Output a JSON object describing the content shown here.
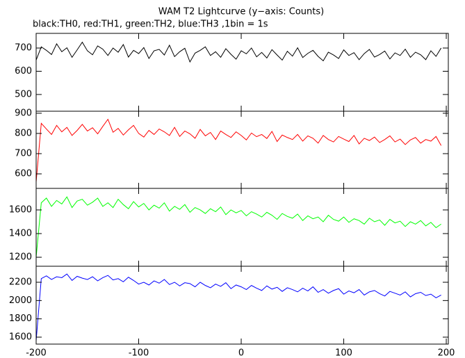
{
  "chart_data": [
    {
      "type": "line",
      "title": "WAM T2 Lightcurve (y−axis: Counts)",
      "subtitle": "black:TH0, red:TH1, green:TH2, blue:TH3 ,1bin = 1s",
      "xlim": [
        -200,
        202
      ],
      "ylim": [
        428,
        763
      ],
      "yticks": [
        500,
        600,
        700
      ],
      "x": [
        -200,
        -195,
        -190,
        -185,
        -180,
        -175,
        -170,
        -165,
        -160,
        -155,
        -150,
        -145,
        -140,
        -135,
        -130,
        -125,
        -120,
        -115,
        -110,
        -105,
        -100,
        -95,
        -90,
        -85,
        -80,
        -75,
        -70,
        -65,
        -60,
        -55,
        -50,
        -45,
        -40,
        -35,
        -30,
        -25,
        -20,
        -15,
        -10,
        -5,
        0,
        5,
        10,
        15,
        20,
        25,
        30,
        35,
        40,
        45,
        50,
        55,
        60,
        65,
        70,
        75,
        80,
        85,
        90,
        95,
        100,
        105,
        110,
        115,
        120,
        125,
        130,
        135,
        140,
        145,
        150,
        155,
        160,
        165,
        170,
        175,
        180,
        185,
        190,
        195
      ],
      "series": [
        {
          "color": "#000000",
          "values": [
            648,
            705,
            690,
            672,
            718,
            684,
            701,
            660,
            692,
            725,
            688,
            671,
            709,
            695,
            668,
            700,
            682,
            715,
            661,
            690,
            676,
            702,
            655,
            688,
            694,
            670,
            712,
            663,
            684,
            699,
            640,
            678,
            690,
            705,
            668,
            684,
            660,
            697,
            673,
            652,
            688,
            675,
            700,
            662,
            681,
            657,
            693,
            670,
            648,
            686,
            665,
            701,
            659,
            677,
            690,
            664,
            645,
            682,
            670,
            655,
            692,
            668,
            680,
            650,
            676,
            694,
            661,
            672,
            687,
            653,
            679,
            668,
            695,
            660,
            682,
            671,
            650,
            688,
            664,
            700
          ]
        }
      ]
    },
    {
      "type": "line",
      "xlim": [
        -200,
        202
      ],
      "ylim": [
        528,
        910
      ],
      "yticks": [
        600,
        700,
        800,
        900
      ],
      "x": [
        -200,
        -195,
        -190,
        -185,
        -180,
        -175,
        -170,
        -165,
        -160,
        -155,
        -150,
        -145,
        -140,
        -135,
        -130,
        -125,
        -120,
        -115,
        -110,
        -105,
        -100,
        -95,
        -90,
        -85,
        -80,
        -75,
        -70,
        -65,
        -60,
        -55,
        -50,
        -45,
        -40,
        -35,
        -30,
        -25,
        -20,
        -15,
        -10,
        -5,
        0,
        5,
        10,
        15,
        20,
        25,
        30,
        35,
        40,
        45,
        50,
        55,
        60,
        65,
        70,
        75,
        80,
        85,
        90,
        95,
        100,
        105,
        110,
        115,
        120,
        125,
        130,
        135,
        140,
        145,
        150,
        155,
        160,
        165,
        170,
        175,
        180,
        185,
        190,
        195
      ],
      "series": [
        {
          "color": "#ff0000",
          "values": [
            560,
            850,
            822,
            795,
            840,
            808,
            830,
            790,
            815,
            845,
            812,
            828,
            798,
            835,
            870,
            806,
            825,
            792,
            818,
            840,
            800,
            782,
            815,
            795,
            822,
            808,
            790,
            830,
            785,
            812,
            798,
            776,
            820,
            788,
            805,
            770,
            812,
            795,
            780,
            808,
            790,
            768,
            802,
            784,
            795,
            775,
            810,
            760,
            792,
            780,
            770,
            795,
            762,
            788,
            776,
            752,
            790,
            770,
            758,
            785,
            772,
            760,
            790,
            748,
            776,
            765,
            782,
            755,
            770,
            788,
            758,
            772,
            745,
            768,
            780,
            752,
            770,
            762,
            785,
            740
          ]
        }
      ]
    },
    {
      "type": "line",
      "xlim": [
        -200,
        202
      ],
      "ylim": [
        1124,
        1782
      ],
      "yticks": [
        1200,
        1400,
        1600
      ],
      "x": [
        -200,
        -195,
        -190,
        -185,
        -180,
        -175,
        -170,
        -165,
        -160,
        -155,
        -150,
        -145,
        -140,
        -135,
        -130,
        -125,
        -120,
        -115,
        -110,
        -105,
        -100,
        -95,
        -90,
        -85,
        -80,
        -75,
        -70,
        -65,
        -60,
        -55,
        -50,
        -45,
        -40,
        -35,
        -30,
        -25,
        -20,
        -15,
        -10,
        -5,
        0,
        5,
        10,
        15,
        20,
        25,
        30,
        35,
        40,
        45,
        50,
        55,
        60,
        65,
        70,
        75,
        80,
        85,
        90,
        95,
        100,
        105,
        110,
        115,
        120,
        125,
        130,
        135,
        140,
        145,
        150,
        155,
        160,
        165,
        170,
        175,
        180,
        185,
        190,
        195
      ],
      "series": [
        {
          "color": "#00ff00",
          "values": [
            1200,
            1660,
            1700,
            1630,
            1680,
            1650,
            1710,
            1620,
            1675,
            1690,
            1640,
            1665,
            1700,
            1630,
            1660,
            1620,
            1690,
            1645,
            1610,
            1670,
            1625,
            1655,
            1600,
            1640,
            1615,
            1660,
            1590,
            1630,
            1605,
            1645,
            1580,
            1620,
            1600,
            1570,
            1610,
            1585,
            1625,
            1560,
            1600,
            1575,
            1595,
            1550,
            1585,
            1565,
            1540,
            1580,
            1555,
            1520,
            1570,
            1545,
            1530,
            1565,
            1510,
            1550,
            1525,
            1540,
            1500,
            1555,
            1520,
            1505,
            1540,
            1495,
            1525,
            1510,
            1480,
            1530,
            1500,
            1515,
            1470,
            1520,
            1490,
            1505,
            1460,
            1500,
            1480,
            1510,
            1465,
            1495,
            1450,
            1480
          ]
        }
      ]
    },
    {
      "type": "line",
      "xlim": [
        -200,
        202
      ],
      "ylim": [
        1524,
        2375
      ],
      "yticks": [
        1600,
        1800,
        2000,
        2200
      ],
      "xticks": [
        -200,
        -100,
        0,
        100,
        200
      ],
      "x": [
        -200,
        -195,
        -190,
        -185,
        -180,
        -175,
        -170,
        -165,
        -160,
        -155,
        -150,
        -145,
        -140,
        -135,
        -130,
        -125,
        -120,
        -115,
        -110,
        -105,
        -100,
        -95,
        -90,
        -85,
        -80,
        -75,
        -70,
        -65,
        -60,
        -55,
        -50,
        -45,
        -40,
        -35,
        -30,
        -25,
        -20,
        -15,
        -10,
        -5,
        0,
        5,
        10,
        15,
        20,
        25,
        30,
        35,
        40,
        45,
        50,
        55,
        60,
        65,
        70,
        75,
        80,
        85,
        90,
        95,
        100,
        105,
        110,
        115,
        120,
        125,
        130,
        135,
        140,
        145,
        150,
        155,
        160,
        165,
        170,
        175,
        180,
        185,
        190,
        195
      ],
      "series": [
        {
          "color": "#0000ff",
          "values": [
            1560,
            2240,
            2270,
            2230,
            2260,
            2250,
            2290,
            2220,
            2265,
            2245,
            2230,
            2260,
            2215,
            2250,
            2275,
            2225,
            2240,
            2205,
            2255,
            2220,
            2180,
            2200,
            2170,
            2215,
            2190,
            2230,
            2175,
            2200,
            2160,
            2195,
            2185,
            2150,
            2200,
            2165,
            2140,
            2180,
            2155,
            2195,
            2130,
            2170,
            2150,
            2120,
            2165,
            2135,
            2110,
            2160,
            2125,
            2145,
            2100,
            2140,
            2120,
            2095,
            2135,
            2105,
            2150,
            2090,
            2120,
            2080,
            2110,
            2130,
            2070,
            2105,
            2085,
            2120,
            2060,
            2095,
            2110,
            2075,
            2050,
            2100,
            2080,
            2060,
            2095,
            2040,
            2075,
            2090,
            2055,
            2070,
            2030,
            2060
          ]
        }
      ]
    }
  ]
}
